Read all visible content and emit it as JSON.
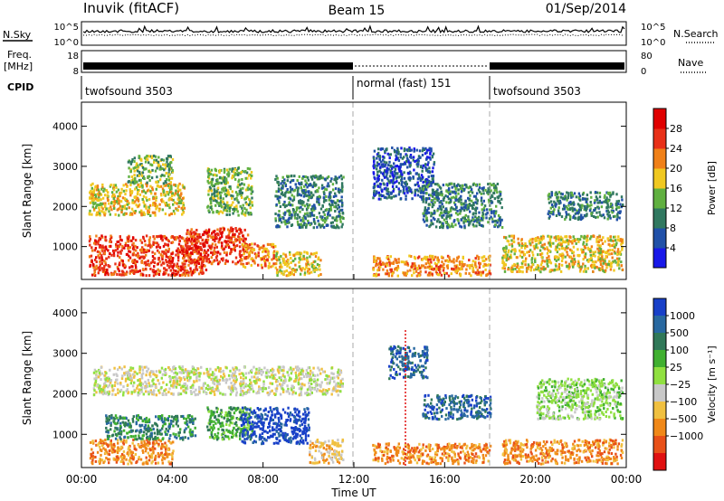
{
  "header": {
    "station": "Inuvik (fitACF)",
    "beam": "Beam 15",
    "date": "01/Sep/2014"
  },
  "nsky_panel": {
    "label": "N.Sky",
    "left_ticks": [
      "10^5",
      "10^0"
    ],
    "right_ticks": [
      "10^5",
      "10^0"
    ],
    "right_label": "N.Search"
  },
  "freq_panel": {
    "label_top": "Freq.",
    "label_bottom": "[MHz]",
    "left_ticks": [
      "18",
      "8"
    ],
    "right_ticks": [
      "80",
      "0"
    ],
    "right_label": "Nave"
  },
  "cpid": {
    "label": "CPID",
    "segments": [
      {
        "name": "twofsound 3503",
        "start_h": 0,
        "end_h": 12
      },
      {
        "name": "normal (fast) 151",
        "start_h": 12,
        "end_h": 18
      },
      {
        "name": "twofsound 3503",
        "start_h": 18,
        "end_h": 24
      }
    ]
  },
  "x_axis": {
    "label": "Time UT",
    "ticks": [
      "00:00",
      "04:00",
      "08:00",
      "12:00",
      "16:00",
      "20:00",
      "00:00"
    ]
  },
  "chart_data": [
    {
      "type": "heatmap",
      "title": "",
      "xlabel": "Time UT",
      "ylabel": "Slant Range [km]",
      "xlim_hours": [
        0,
        24
      ],
      "ylim_km": [
        180,
        4600
      ],
      "yticks": [
        1000,
        2000,
        3000,
        4000
      ],
      "colorbar": {
        "label": "Power [dB]",
        "ticks": [
          "4",
          "8",
          "12",
          "16",
          "20",
          "24",
          "28"
        ],
        "colors": [
          "#1818e8",
          "#2050a8",
          "#307860",
          "#60b040",
          "#f0c820",
          "#f08018",
          "#e83018",
          "#e00000"
        ]
      },
      "regions": [
        {
          "t0": 0.3,
          "t1": 5.5,
          "r0": 300,
          "r1": 1300,
          "level": 6
        },
        {
          "t0": 4.5,
          "t1": 7.3,
          "r0": 600,
          "r1": 1500,
          "level": 6
        },
        {
          "t0": 7.0,
          "t1": 8.5,
          "r0": 500,
          "r1": 1100,
          "level": 5
        },
        {
          "t0": 8.5,
          "t1": 10.5,
          "r0": 300,
          "r1": 900,
          "level": 4
        },
        {
          "t0": 0.3,
          "t1": 4.5,
          "r0": 1800,
          "r1": 2600,
          "level": 4
        },
        {
          "t0": 2.0,
          "t1": 4.0,
          "r0": 2600,
          "r1": 3300,
          "level": 3
        },
        {
          "t0": 5.5,
          "t1": 7.5,
          "r0": 1800,
          "r1": 3000,
          "level": 3
        },
        {
          "t0": 8.5,
          "t1": 11.5,
          "r0": 1500,
          "r1": 2800,
          "level": 2
        },
        {
          "t0": 12.8,
          "t1": 15.5,
          "r0": 2200,
          "r1": 3500,
          "level": 1
        },
        {
          "t0": 15.0,
          "t1": 18.5,
          "r0": 1500,
          "r1": 2600,
          "level": 2
        },
        {
          "t0": 12.8,
          "t1": 18.0,
          "r0": 300,
          "r1": 800,
          "level": 5
        },
        {
          "t0": 18.5,
          "t1": 23.8,
          "r0": 400,
          "r1": 1300,
          "level": 4
        },
        {
          "t0": 20.5,
          "t1": 23.8,
          "r0": 1700,
          "r1": 2400,
          "level": 2
        }
      ]
    },
    {
      "type": "heatmap",
      "title": "",
      "xlabel": "Time UT",
      "ylabel": "Slant Range [km]",
      "xlim_hours": [
        0,
        24
      ],
      "ylim_km": [
        180,
        4600
      ],
      "yticks": [
        1000,
        2000,
        3000,
        4000
      ],
      "colorbar": {
        "label": "Velocity [m s⁻¹]",
        "ticks": [
          "1000",
          "500",
          "100",
          "25",
          "−25",
          "−100",
          "−500",
          "−1000"
        ],
        "colors": [
          "#1840c8",
          "#2868a0",
          "#307858",
          "#40b030",
          "#90e040",
          "#c8c8c8",
          "#f0c040",
          "#f08818",
          "#e85018",
          "#e01010"
        ]
      },
      "regions": [
        {
          "t0": 0.3,
          "t1": 4.0,
          "r0": 300,
          "r1": 900,
          "level": 7
        },
        {
          "t0": 1.0,
          "t1": 5.0,
          "r0": 900,
          "r1": 1500,
          "level": 2
        },
        {
          "t0": 5.5,
          "t1": 7.5,
          "r0": 900,
          "r1": 1700,
          "level": 3
        },
        {
          "t0": 7.0,
          "t1": 10.0,
          "r0": 800,
          "r1": 1700,
          "level": 0
        },
        {
          "t0": 0.5,
          "t1": 11.5,
          "r0": 2000,
          "r1": 2700,
          "level": 5
        },
        {
          "t0": 10.0,
          "t1": 11.5,
          "r0": 300,
          "r1": 900,
          "level": 6
        },
        {
          "t0": 12.8,
          "t1": 18.0,
          "r0": 300,
          "r1": 800,
          "level": 7
        },
        {
          "t0": 13.5,
          "t1": 15.2,
          "r0": 2400,
          "r1": 3200,
          "level": 1
        },
        {
          "t0": 15.0,
          "t1": 18.0,
          "r0": 1400,
          "r1": 2000,
          "level": 1
        },
        {
          "t0": 18.5,
          "t1": 23.8,
          "r0": 300,
          "r1": 900,
          "level": 7
        },
        {
          "t0": 20.0,
          "t1": 23.8,
          "r0": 1400,
          "r1": 2400,
          "level": 4
        }
      ]
    }
  ]
}
